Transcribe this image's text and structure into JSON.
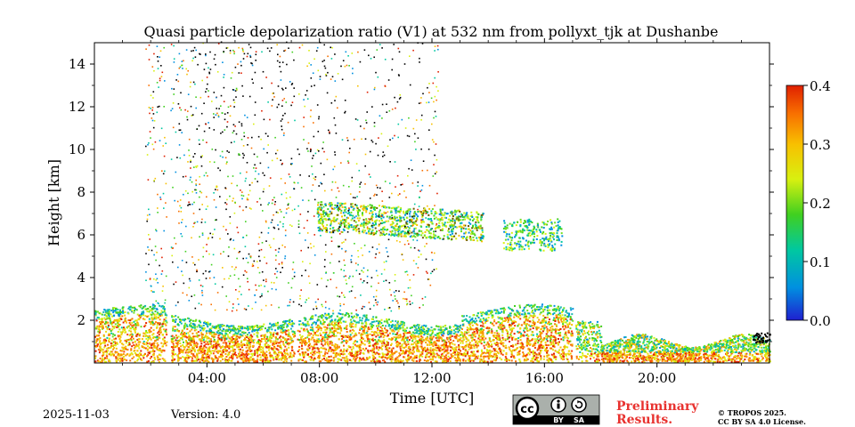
{
  "chart_data": {
    "type": "heatmap",
    "title": "Quasi particle depolarization ratio (V1) at 532 nm from pollyxt_tjk at Dushanbe",
    "xlabel": "Time [UTC]",
    "ylabel": "Height [km]",
    "xlim_hours": [
      0,
      24
    ],
    "ylim_km": [
      0,
      15
    ],
    "x_ticks": [
      {
        "hour": 4,
        "label": "04:00"
      },
      {
        "hour": 8,
        "label": "08:00"
      },
      {
        "hour": 12,
        "label": "12:00"
      },
      {
        "hour": 16,
        "label": "16:00"
      },
      {
        "hour": 20,
        "label": "20:00"
      }
    ],
    "y_ticks": [
      {
        "km": 2,
        "label": "2"
      },
      {
        "km": 4,
        "label": "4"
      },
      {
        "km": 6,
        "label": "6"
      },
      {
        "km": 8,
        "label": "8"
      },
      {
        "km": 10,
        "label": "10"
      },
      {
        "km": 12,
        "label": "12"
      },
      {
        "km": 14,
        "label": "14"
      }
    ],
    "colorbar": {
      "range": [
        0.0,
        0.4
      ],
      "ticks": [
        {
          "value": 0.0,
          "label": "0.0"
        },
        {
          "value": 0.1,
          "label": "0.1"
        },
        {
          "value": 0.2,
          "label": "0.2"
        },
        {
          "value": 0.3,
          "label": "0.3"
        },
        {
          "value": 0.4,
          "label": "0.4"
        }
      ],
      "colors": [
        "#1f1fd0",
        "#0090e0",
        "#00c8a0",
        "#40d020",
        "#d8f010",
        "#f8c000",
        "#f87000",
        "#e02000"
      ]
    },
    "data_gaps_hours": [
      [
        2.55,
        2.7
      ],
      [
        7.1,
        7.2
      ],
      [
        16.98,
        17.1
      ],
      [
        21.55,
        21.62
      ]
    ],
    "regions": [
      {
        "name": "boundary layer (depol ~0.25-0.35)",
        "t_start": 0.0,
        "t_end": 17.0,
        "h_bottom_km": 0.0,
        "h_top_km": 2.3
      },
      {
        "name": "aerosol layer (depol ~0.15-0.2)",
        "t_start": 7.9,
        "t_end": 13.8,
        "h_bottom_km": 6.0,
        "h_top_km": 7.6
      },
      {
        "name": "aerosol layer (depol ~0.1-0.2)",
        "t_start": 14.5,
        "t_end": 16.6,
        "h_bottom_km": 5.2,
        "h_top_km": 6.8
      },
      {
        "name": "boundary layer (depol ~0.2-0.3)",
        "t_start": 17.0,
        "t_end": 24.0,
        "h_bottom_km": 0.0,
        "h_top_km": 1.5
      },
      {
        "name": "sparse noise (mixed)",
        "t_start": 2.0,
        "t_end": 12.0,
        "h_bottom_km": 2.3,
        "h_top_km": 15.0
      }
    ]
  },
  "footer": {
    "date": "2025-11-03",
    "version": "Version: 4.0",
    "preliminary_line1": "Preliminary",
    "preliminary_line2": "Results.",
    "copyright_line1": "© TROPOS 2025.",
    "copyright_line2": "CC BY SA 4.0 License.",
    "license_badge": {
      "cc": "cc",
      "by": "BY",
      "sa": "SA"
    }
  }
}
